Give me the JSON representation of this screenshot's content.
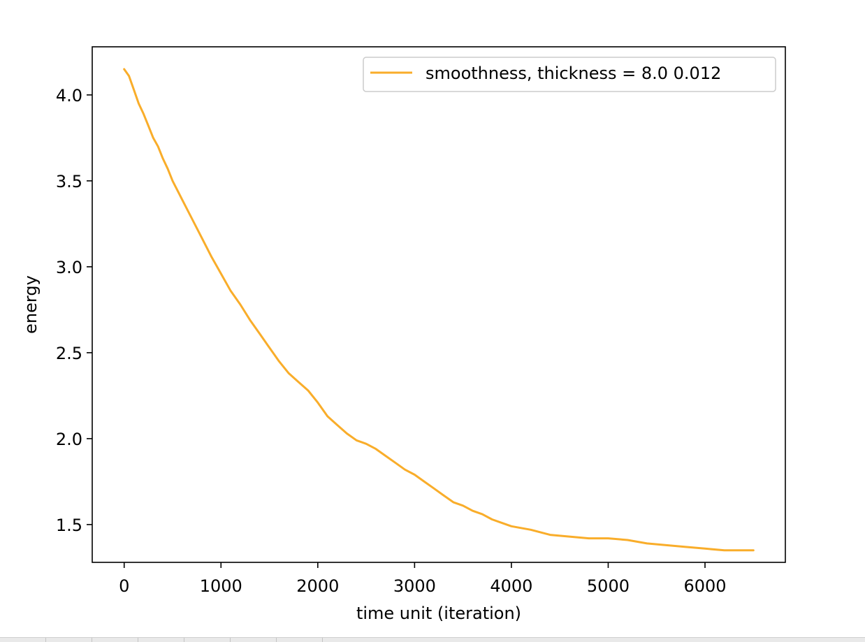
{
  "chart_data": {
    "type": "line",
    "title": "",
    "xlabel": "time unit (iteration)",
    "ylabel": "energy",
    "xlim": [
      -330,
      6830
    ],
    "ylim": [
      1.28,
      4.28
    ],
    "x_ticks": [
      0,
      1000,
      2000,
      3000,
      4000,
      5000,
      6000
    ],
    "x_tick_labels": [
      "0",
      "1000",
      "2000",
      "3000",
      "4000",
      "5000",
      "6000"
    ],
    "y_ticks": [
      1.5,
      2.0,
      2.5,
      3.0,
      3.5,
      4.0
    ],
    "y_tick_labels": [
      "1.5",
      "2.0",
      "2.5",
      "3.0",
      "3.5",
      "4.0"
    ],
    "grid": false,
    "legend_position": "upper right",
    "series": [
      {
        "name": "smoothness, thickness = 8.0 0.012",
        "color": "#f9ad2a",
        "x": [
          0,
          50,
          100,
          150,
          200,
          250,
          300,
          350,
          400,
          450,
          500,
          600,
          700,
          800,
          900,
          1000,
          1100,
          1200,
          1300,
          1400,
          1500,
          1600,
          1700,
          1800,
          1900,
          2000,
          2100,
          2200,
          2300,
          2400,
          2500,
          2600,
          2700,
          2800,
          2900,
          3000,
          3100,
          3200,
          3300,
          3400,
          3500,
          3600,
          3700,
          3800,
          3900,
          4000,
          4200,
          4400,
          4600,
          4800,
          5000,
          5200,
          5400,
          5600,
          5800,
          6000,
          6200,
          6500
        ],
        "y": [
          4.15,
          4.11,
          4.03,
          3.95,
          3.89,
          3.82,
          3.75,
          3.7,
          3.63,
          3.57,
          3.5,
          3.39,
          3.28,
          3.17,
          3.06,
          2.96,
          2.86,
          2.78,
          2.69,
          2.61,
          2.53,
          2.45,
          2.38,
          2.33,
          2.28,
          2.21,
          2.13,
          2.08,
          2.03,
          1.99,
          1.97,
          1.94,
          1.9,
          1.86,
          1.82,
          1.79,
          1.75,
          1.71,
          1.67,
          1.63,
          1.61,
          1.58,
          1.56,
          1.53,
          1.51,
          1.49,
          1.47,
          1.44,
          1.43,
          1.42,
          1.42,
          1.41,
          1.39,
          1.38,
          1.37,
          1.36,
          1.35,
          1.35
        ]
      }
    ]
  }
}
